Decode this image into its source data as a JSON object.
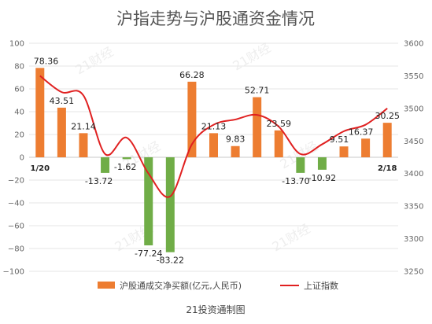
{
  "chart_data": {
    "type": "bar",
    "title": "沪指走势与沪股通资金情况",
    "caption": "21投资通制图",
    "watermark": "21财经",
    "x_tick_labels": [
      "1/20",
      "2/18"
    ],
    "y_left": {
      "min": -100,
      "max": 100,
      "step": 20,
      "tick_labels": [
        "100",
        "80",
        "60",
        "40",
        "20",
        "0",
        "−20",
        "−40",
        "−60",
        "−80",
        "−100"
      ]
    },
    "y_right": {
      "min": 3250,
      "max": 3600,
      "step": 50,
      "tick_labels": [
        "3600",
        "3550",
        "3500",
        "3450",
        "3400",
        "3350",
        "3300",
        "3250"
      ]
    },
    "series": [
      {
        "name": "沪股通成交净买额(亿元,人民币)",
        "type": "bar",
        "axis": "left",
        "values": [
          78.36,
          43.51,
          21.14,
          -13.72,
          -1.62,
          -77.24,
          -83.22,
          66.28,
          21.13,
          9.83,
          52.71,
          23.59,
          -13.7,
          -10.92,
          9.51,
          16.37,
          30.25
        ],
        "data_labels": [
          "78.36",
          "43.51",
          "21.14",
          "-13.72",
          "-1.62",
          "-77.24",
          "-83.22",
          "66.28",
          "21.13",
          "9.83",
          "52.71",
          "23.59",
          "-13.70",
          "-10.92",
          "9.51",
          "16.37",
          "30.25"
        ]
      },
      {
        "name": "上证指数",
        "type": "line",
        "axis": "right",
        "values": [
          3550,
          3525,
          3520,
          3430,
          3455,
          3400,
          3365,
          3445,
          3475,
          3483,
          3490,
          3472,
          3430,
          3445,
          3465,
          3475,
          3500
        ]
      }
    ],
    "colors": {
      "positive_bar": "#ED7D31",
      "negative_bar": "#70AD47",
      "line": "#E02020",
      "grid": "#E6E6E6",
      "zero_line": "#C8C8C8"
    },
    "grid": true,
    "legend_position": "bottom"
  }
}
